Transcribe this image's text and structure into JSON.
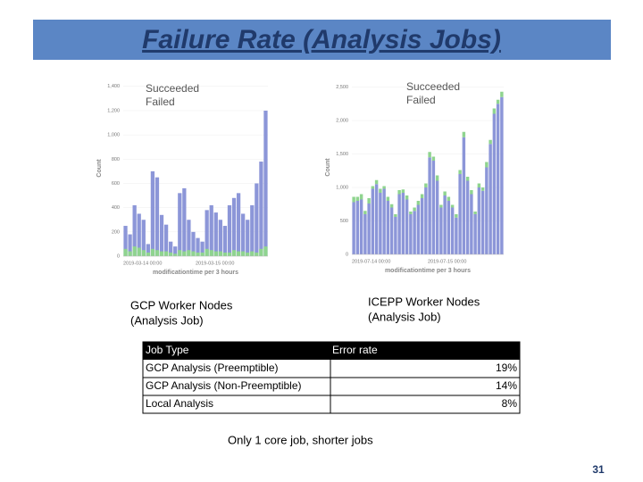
{
  "title": "Failure Rate (Analysis Jobs)",
  "chart_data": [
    {
      "type": "histogram",
      "stacked": false,
      "x_label": "modificationtime per 3 hours",
      "y_label": "Count",
      "categories": [
        "2019-03-14 00:00",
        null,
        null,
        null,
        null,
        null,
        null,
        null,
        null,
        null,
        null,
        null,
        null,
        null,
        null,
        null,
        "2019-03-15 00:00",
        null,
        null,
        null,
        null,
        null,
        null,
        null,
        null,
        null,
        null,
        null,
        null,
        null,
        null,
        null
      ],
      "series": [
        {
          "name": "Succeeded",
          "color": "#8c96d8",
          "values": [
            250,
            180,
            420,
            350,
            300,
            100,
            700,
            650,
            340,
            260,
            120,
            80,
            520,
            560,
            300,
            200,
            150,
            120,
            380,
            420,
            360,
            300,
            250,
            420,
            480,
            520,
            350,
            300,
            420,
            600,
            780,
            1200
          ]
        },
        {
          "name": "Failed",
          "color": "#8fd48f",
          "values": [
            60,
            40,
            80,
            70,
            50,
            30,
            60,
            50,
            40,
            40,
            30,
            20,
            50,
            40,
            50,
            40,
            30,
            30,
            60,
            50,
            40,
            40,
            30,
            30,
            50,
            40,
            40,
            30,
            40,
            30,
            60,
            80
          ]
        }
      ],
      "ylim": [
        0,
        1450
      ],
      "yticks": [
        0,
        200,
        400,
        600,
        800,
        {
          "value": 1000,
          "label": "1,000"
        },
        {
          "value": 1200,
          "label": "1,200"
        },
        {
          "value": 1400,
          "label": "1,400"
        }
      ],
      "caption": [
        "GCP Worker Nodes",
        "(Analysis Job)"
      ]
    },
    {
      "type": "histogram",
      "stacked": true,
      "x_label": "modificationtime per 3 hours",
      "y_label": "Count",
      "categories": [
        "2019-07-14 00:00",
        null,
        null,
        null,
        null,
        null,
        null,
        null,
        null,
        null,
        null,
        null,
        null,
        null,
        null,
        null,
        null,
        null,
        null,
        null,
        "2019-07-15 00:00",
        null,
        null,
        null,
        null,
        null,
        null,
        null,
        null,
        null,
        null,
        null,
        null,
        null,
        null,
        null,
        null,
        null,
        null,
        null
      ],
      "series": [
        {
          "name": "Succeeded",
          "color": "#8c96d8",
          "values": [
            780,
            800,
            820,
            600,
            760,
            980,
            1050,
            920,
            980,
            800,
            700,
            560,
            900,
            920,
            820,
            600,
            650,
            740,
            840,
            1000,
            1450,
            1400,
            1100,
            700,
            880,
            800,
            700,
            550,
            1200,
            1750,
            1100,
            900,
            600,
            1000,
            950,
            1300,
            1650,
            2100,
            2250,
            2350
          ]
        },
        {
          "name": "Failed",
          "color": "#8fd48f",
          "values": [
            80,
            60,
            80,
            50,
            80,
            40,
            60,
            60,
            40,
            60,
            50,
            40,
            60,
            50,
            60,
            40,
            50,
            60,
            60,
            60,
            80,
            60,
            80,
            40,
            60,
            60,
            40,
            50,
            60,
            80,
            60,
            60,
            40,
            60,
            50,
            80,
            60,
            80,
            60,
            80
          ]
        }
      ],
      "ylim": [
        0,
        2600
      ],
      "yticks": [
        0,
        500,
        {
          "value": 1000,
          "label": "1,000"
        },
        {
          "value": 1500,
          "label": "1,500"
        },
        {
          "value": 2000,
          "label": "2,000"
        },
        {
          "value": 2500,
          "label": "2,500"
        }
      ],
      "caption": [
        "ICEPP Worker Nodes",
        "(Analysis Job)"
      ]
    }
  ],
  "table": {
    "header": [
      "Job Type",
      "Error rate"
    ],
    "rows": [
      [
        "GCP Analysis (Preemptible)",
        "19%"
      ],
      [
        "GCP Analysis (Non-Preemptible)",
        "14%"
      ],
      [
        "Local Analysis",
        "8%"
      ]
    ]
  },
  "note": "Only 1 core job, shorter jobs",
  "page_number": "31"
}
